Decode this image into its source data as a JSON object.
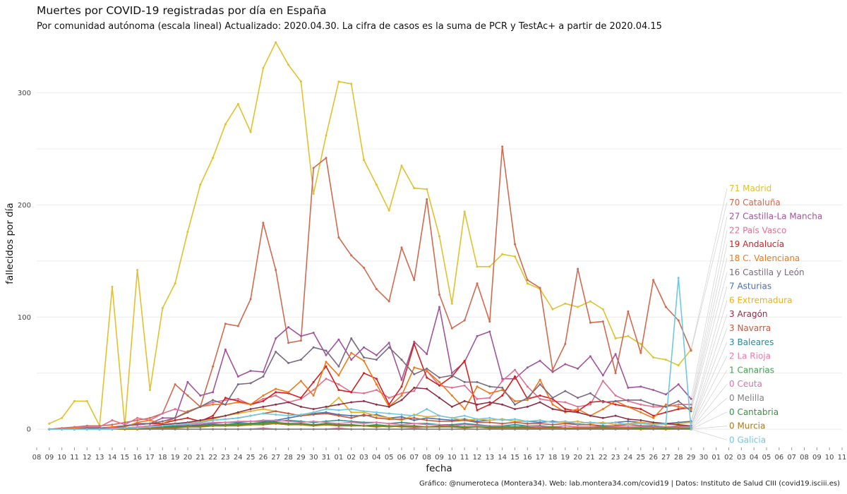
{
  "title": "Muertes por COVID-19 registradas por día en España",
  "subtitle": "Por comunidad autónoma (escala lineal) Actualizado: 2020.04.30. La cifra de casos es la suma de PCR y TestAc+ a partir de 2020.04.15",
  "caption": "Gráfico: @numeroteca (Montera34). Web: lab.montera34.com/covid19 | Datos: Instituto de Salud CIII (covid19.isciii.es)",
  "chart_data": {
    "type": "line",
    "xlabel": "fecha",
    "ylabel": "fallecidos por día",
    "ylim": [
      -15,
      345
    ],
    "yticks": [
      0,
      100,
      200,
      300
    ],
    "x_tick_labels": [
      "08",
      "09",
      "10",
      "11",
      "12",
      "13",
      "14",
      "15",
      "16",
      "17",
      "18",
      "19",
      "20",
      "21",
      "22",
      "23",
      "24",
      "25",
      "26",
      "27",
      "28",
      "29",
      "30",
      "31",
      "01",
      "02",
      "03",
      "04",
      "05",
      "06",
      "07",
      "08",
      "09",
      "10",
      "11",
      "12",
      "13",
      "14",
      "15",
      "16",
      "17",
      "18",
      "19",
      "20",
      "21",
      "22",
      "23",
      "24",
      "25",
      "26",
      "27",
      "28",
      "29",
      "30",
      "01",
      "02",
      "03",
      "04",
      "05",
      "06",
      "07",
      "08",
      "09",
      "10",
      "11"
    ],
    "x_start": "2020-03-08",
    "x_end": "2020-05-11",
    "dates": [
      "2020-03-09",
      "2020-03-10",
      "2020-03-11",
      "2020-03-12",
      "2020-03-13",
      "2020-03-14",
      "2020-03-15",
      "2020-03-16",
      "2020-03-17",
      "2020-03-18",
      "2020-03-19",
      "2020-03-20",
      "2020-03-21",
      "2020-03-22",
      "2020-03-23",
      "2020-03-24",
      "2020-03-25",
      "2020-03-26",
      "2020-03-27",
      "2020-03-28",
      "2020-03-29",
      "2020-03-30",
      "2020-03-31",
      "2020-04-01",
      "2020-04-02",
      "2020-04-03",
      "2020-04-04",
      "2020-04-05",
      "2020-04-06",
      "2020-04-07",
      "2020-04-08",
      "2020-04-09",
      "2020-04-10",
      "2020-04-11",
      "2020-04-12",
      "2020-04-13",
      "2020-04-14",
      "2020-04-15",
      "2020-04-16",
      "2020-04-17",
      "2020-04-18",
      "2020-04-19",
      "2020-04-20",
      "2020-04-21",
      "2020-04-22",
      "2020-04-23",
      "2020-04-24",
      "2020-04-25",
      "2020-04-26",
      "2020-04-27",
      "2020-04-28",
      "2020-04-29"
    ],
    "grid": true,
    "legend": "right",
    "series": [
      {
        "name": "Madrid",
        "label": "71 Madrid",
        "color": "#e0c12e",
        "values": [
          5,
          10,
          25,
          25,
          3,
          127,
          3,
          142,
          35,
          108,
          130,
          176,
          218,
          242,
          272,
          290,
          265,
          322,
          345,
          325,
          310,
          210,
          262,
          310,
          308,
          240,
          218,
          195,
          235,
          215,
          214,
          172,
          112,
          194,
          145,
          145,
          156,
          154,
          130,
          125,
          107,
          112,
          109,
          114,
          107,
          81,
          83,
          76,
          64,
          62,
          57,
          71
        ]
      },
      {
        "name": "Cataluña",
        "label": "70 Cataluña",
        "color": "#d06a50",
        "values": [
          0,
          1,
          2,
          3,
          3,
          4,
          6,
          8,
          10,
          14,
          40,
          30,
          20,
          56,
          94,
          92,
          116,
          184,
          142,
          77,
          79,
          233,
          242,
          171,
          155,
          144,
          125,
          114,
          162,
          133,
          205,
          120,
          90,
          97,
          130,
          96,
          252,
          165,
          133,
          126,
          53,
          76,
          143,
          95,
          96,
          50,
          105,
          68,
          133,
          109,
          97,
          70
        ]
      },
      {
        "name": "Castilla-La Mancha",
        "label": "27 Castilla-La Mancha",
        "color": "#a0559a",
        "values": [
          0,
          0,
          1,
          1,
          1,
          1,
          3,
          5,
          5,
          10,
          10,
          42,
          30,
          33,
          71,
          47,
          52,
          51,
          81,
          91,
          83,
          86,
          66,
          80,
          62,
          73,
          66,
          77,
          44,
          78,
          67,
          109,
          50,
          60,
          83,
          87,
          45,
          45,
          55,
          61,
          51,
          58,
          54,
          65,
          48,
          67,
          37,
          38,
          35,
          31,
          40,
          27
        ]
      },
      {
        "name": "País Vasco",
        "label": "22 País Vasco",
        "color": "#e07090",
        "values": [
          0,
          0,
          2,
          2,
          2,
          8,
          4,
          10,
          8,
          14,
          18,
          15,
          20,
          24,
          26,
          27,
          22,
          27,
          30,
          24,
          27,
          35,
          45,
          40,
          33,
          32,
          35,
          28,
          32,
          34,
          52,
          39,
          37,
          39,
          27,
          28,
          43,
          53,
          38,
          27,
          25,
          24,
          20,
          22,
          43,
          30,
          25,
          22,
          20,
          20,
          22,
          22
        ]
      },
      {
        "name": "Andalucía",
        "label": "19 Andalucía",
        "color": "#d42020",
        "values": [
          0,
          0,
          0,
          1,
          1,
          2,
          3,
          4,
          5,
          5,
          8,
          10,
          7,
          12,
          28,
          25,
          22,
          25,
          33,
          32,
          28,
          42,
          56,
          35,
          33,
          50,
          45,
          22,
          38,
          76,
          46,
          39,
          47,
          61,
          17,
          22,
          30,
          47,
          27,
          30,
          27,
          18,
          16,
          24,
          25,
          22,
          20,
          18,
          12,
          15,
          18,
          19
        ]
      },
      {
        "name": "C. Valenciana",
        "label": "18 C. Valenciana",
        "color": "#f07818",
        "values": [
          0,
          0,
          1,
          1,
          1,
          2,
          2,
          6,
          8,
          5,
          10,
          16,
          20,
          22,
          22,
          24,
          22,
          30,
          36,
          33,
          43,
          30,
          60,
          48,
          68,
          61,
          40,
          20,
          30,
          55,
          52,
          42,
          30,
          18,
          38,
          32,
          35,
          25,
          26,
          44,
          22,
          15,
          18,
          12,
          18,
          25,
          20,
          15,
          10,
          22,
          20,
          18
        ]
      },
      {
        "name": "Castilla y León",
        "label": "16 Castilla y León",
        "color": "#7a6a82",
        "values": [
          0,
          0,
          0,
          1,
          1,
          1,
          3,
          4,
          5,
          7,
          10,
          15,
          20,
          26,
          22,
          40,
          41,
          47,
          69,
          59,
          62,
          73,
          70,
          56,
          81,
          64,
          62,
          73,
          62,
          49,
          54,
          46,
          48,
          42,
          42,
          38,
          37,
          22,
          28,
          40,
          28,
          34,
          28,
          32,
          24,
          25,
          26,
          26,
          22,
          20,
          25,
          16
        ]
      },
      {
        "name": "Asturias",
        "label": "7 Asturias",
        "color": "#4a72b0",
        "values": [
          0,
          0,
          0,
          0,
          0,
          0,
          1,
          1,
          1,
          2,
          3,
          3,
          4,
          5,
          6,
          6,
          7,
          7,
          8,
          10,
          12,
          14,
          15,
          13,
          12,
          12,
          13,
          10,
          11,
          8,
          10,
          9,
          8,
          9,
          7,
          8,
          9,
          7,
          7,
          6,
          7,
          6,
          5,
          6,
          5,
          6,
          7,
          6,
          5,
          5,
          6,
          7
        ]
      },
      {
        "name": "Extremadura",
        "label": "6 Extremadura",
        "color": "#e8b020",
        "values": [
          0,
          0,
          0,
          0,
          0,
          0,
          1,
          1,
          2,
          3,
          4,
          5,
          7,
          9,
          12,
          14,
          16,
          18,
          16,
          14,
          12,
          15,
          18,
          28,
          15,
          15,
          12,
          10,
          8,
          13,
          11,
          12,
          10,
          8,
          9,
          8,
          9,
          7,
          7,
          8,
          6,
          6,
          7,
          5,
          6,
          4,
          5,
          6,
          5,
          4,
          5,
          6
        ]
      },
      {
        "name": "Aragón",
        "label": "3 Aragón",
        "color": "#8a3048",
        "values": [
          0,
          0,
          0,
          0,
          0,
          1,
          1,
          2,
          3,
          4,
          5,
          6,
          8,
          10,
          12,
          15,
          18,
          20,
          22,
          24,
          20,
          18,
          20,
          22,
          24,
          25,
          22,
          20,
          26,
          37,
          36,
          28,
          20,
          25,
          22,
          24,
          22,
          18,
          20,
          24,
          18,
          16,
          15,
          12,
          10,
          12,
          9,
          8,
          6,
          5,
          4,
          3
        ]
      },
      {
        "name": "Navarra",
        "label": "3 Navarra",
        "color": "#c25a40",
        "values": [
          0,
          0,
          0,
          0,
          0,
          0,
          1,
          1,
          2,
          3,
          4,
          5,
          6,
          8,
          9,
          10,
          12,
          14,
          16,
          14,
          12,
          13,
          14,
          12,
          10,
          13,
          10,
          9,
          9,
          10,
          8,
          7,
          7,
          8,
          6,
          6,
          5,
          6,
          5,
          5,
          4,
          5,
          4,
          4,
          3,
          3,
          4,
          3,
          3,
          2,
          3,
          3
        ]
      },
      {
        "name": "Baleares",
        "label": "3 Baleares",
        "color": "#308890",
        "values": [
          0,
          0,
          0,
          0,
          0,
          0,
          0,
          1,
          1,
          1,
          2,
          2,
          3,
          3,
          4,
          5,
          5,
          6,
          7,
          8,
          7,
          6,
          7,
          8,
          7,
          6,
          6,
          5,
          6,
          5,
          5,
          4,
          4,
          5,
          4,
          3,
          3,
          4,
          3,
          3,
          2,
          3,
          2,
          2,
          3,
          2,
          2,
          2,
          3,
          2,
          2,
          3
        ]
      },
      {
        "name": "La Rioja",
        "label": "2 La Rioja",
        "color": "#e87aa8",
        "values": [
          0,
          0,
          0,
          0,
          0,
          1,
          1,
          2,
          3,
          3,
          4,
          4,
          5,
          6,
          6,
          7,
          7,
          8,
          8,
          7,
          6,
          7,
          6,
          5,
          6,
          5,
          6,
          5,
          4,
          5,
          4,
          4,
          3,
          4,
          3,
          3,
          3,
          2,
          3,
          2,
          2,
          3,
          2,
          2,
          2,
          2,
          2,
          2,
          2,
          2,
          2,
          2
        ]
      },
      {
        "name": "Canarias",
        "label": "1 Canarias",
        "color": "#45a050",
        "values": [
          0,
          0,
          0,
          0,
          0,
          0,
          0,
          1,
          1,
          1,
          2,
          2,
          2,
          3,
          3,
          4,
          4,
          5,
          5,
          4,
          5,
          4,
          4,
          3,
          4,
          3,
          3,
          2,
          3,
          2,
          2,
          2,
          3,
          2,
          2,
          1,
          2,
          2,
          1,
          1,
          2,
          1,
          1,
          1,
          2,
          1,
          1,
          1,
          1,
          1,
          1,
          1
        ]
      },
      {
        "name": "Ceuta",
        "label": "0 Ceuta",
        "color": "#d075a8",
        "values": [
          0,
          0,
          0,
          0,
          0,
          0,
          0,
          0,
          0,
          0,
          0,
          0,
          0,
          0,
          0,
          0,
          0,
          1,
          0,
          0,
          0,
          0,
          0,
          1,
          0,
          0,
          0,
          0,
          0,
          1,
          0,
          0,
          0,
          0,
          0,
          0,
          0,
          0,
          0,
          0,
          0,
          0,
          0,
          0,
          0,
          0,
          0,
          0,
          0,
          0,
          0,
          0
        ]
      },
      {
        "name": "Melilla",
        "label": "0 Melilla",
        "color": "#808080",
        "values": [
          0,
          0,
          0,
          0,
          0,
          0,
          0,
          0,
          0,
          0,
          0,
          0,
          0,
          0,
          0,
          0,
          0,
          0,
          0,
          0,
          0,
          0,
          0,
          0,
          0,
          0,
          0,
          0,
          0,
          0,
          0,
          0,
          0,
          0,
          0,
          0,
          0,
          0,
          0,
          0,
          0,
          0,
          0,
          0,
          0,
          0,
          0,
          0,
          0,
          0,
          0,
          0
        ]
      },
      {
        "name": "Cantabria",
        "label": "0 Cantabria",
        "color": "#3a9040",
        "values": [
          0,
          0,
          0,
          0,
          0,
          0,
          0,
          1,
          1,
          2,
          2,
          3,
          3,
          4,
          4,
          5,
          5,
          6,
          6,
          5,
          5,
          4,
          5,
          4,
          4,
          3,
          4,
          3,
          3,
          3,
          2,
          3,
          2,
          2,
          2,
          2,
          2,
          2,
          2,
          1,
          2,
          1,
          1,
          1,
          1,
          1,
          1,
          1,
          1,
          1,
          1,
          0
        ]
      },
      {
        "name": "Murcia",
        "label": "0 Murcia",
        "color": "#a87818",
        "values": [
          0,
          0,
          0,
          0,
          0,
          0,
          0,
          0,
          1,
          1,
          1,
          2,
          2,
          3,
          3,
          3,
          4,
          4,
          5,
          4,
          4,
          3,
          4,
          3,
          3,
          3,
          2,
          3,
          2,
          2,
          2,
          2,
          2,
          1,
          2,
          1,
          1,
          1,
          1,
          1,
          1,
          1,
          1,
          1,
          1,
          1,
          1,
          0,
          1,
          0,
          1,
          0
        ]
      },
      {
        "name": "Galicia",
        "label": "0 Galicia",
        "color": "#70c8e0",
        "values": [
          0,
          0,
          0,
          0,
          0,
          0,
          1,
          1,
          2,
          3,
          4,
          5,
          6,
          8,
          9,
          10,
          12,
          14,
          13,
          12,
          13,
          15,
          18,
          17,
          18,
          16,
          15,
          14,
          13,
          12,
          18,
          12,
          10,
          12,
          9,
          10,
          8,
          9,
          7,
          8,
          6,
          7,
          5,
          6,
          5,
          6,
          4,
          5,
          4,
          5,
          135,
          0
        ]
      }
    ]
  }
}
